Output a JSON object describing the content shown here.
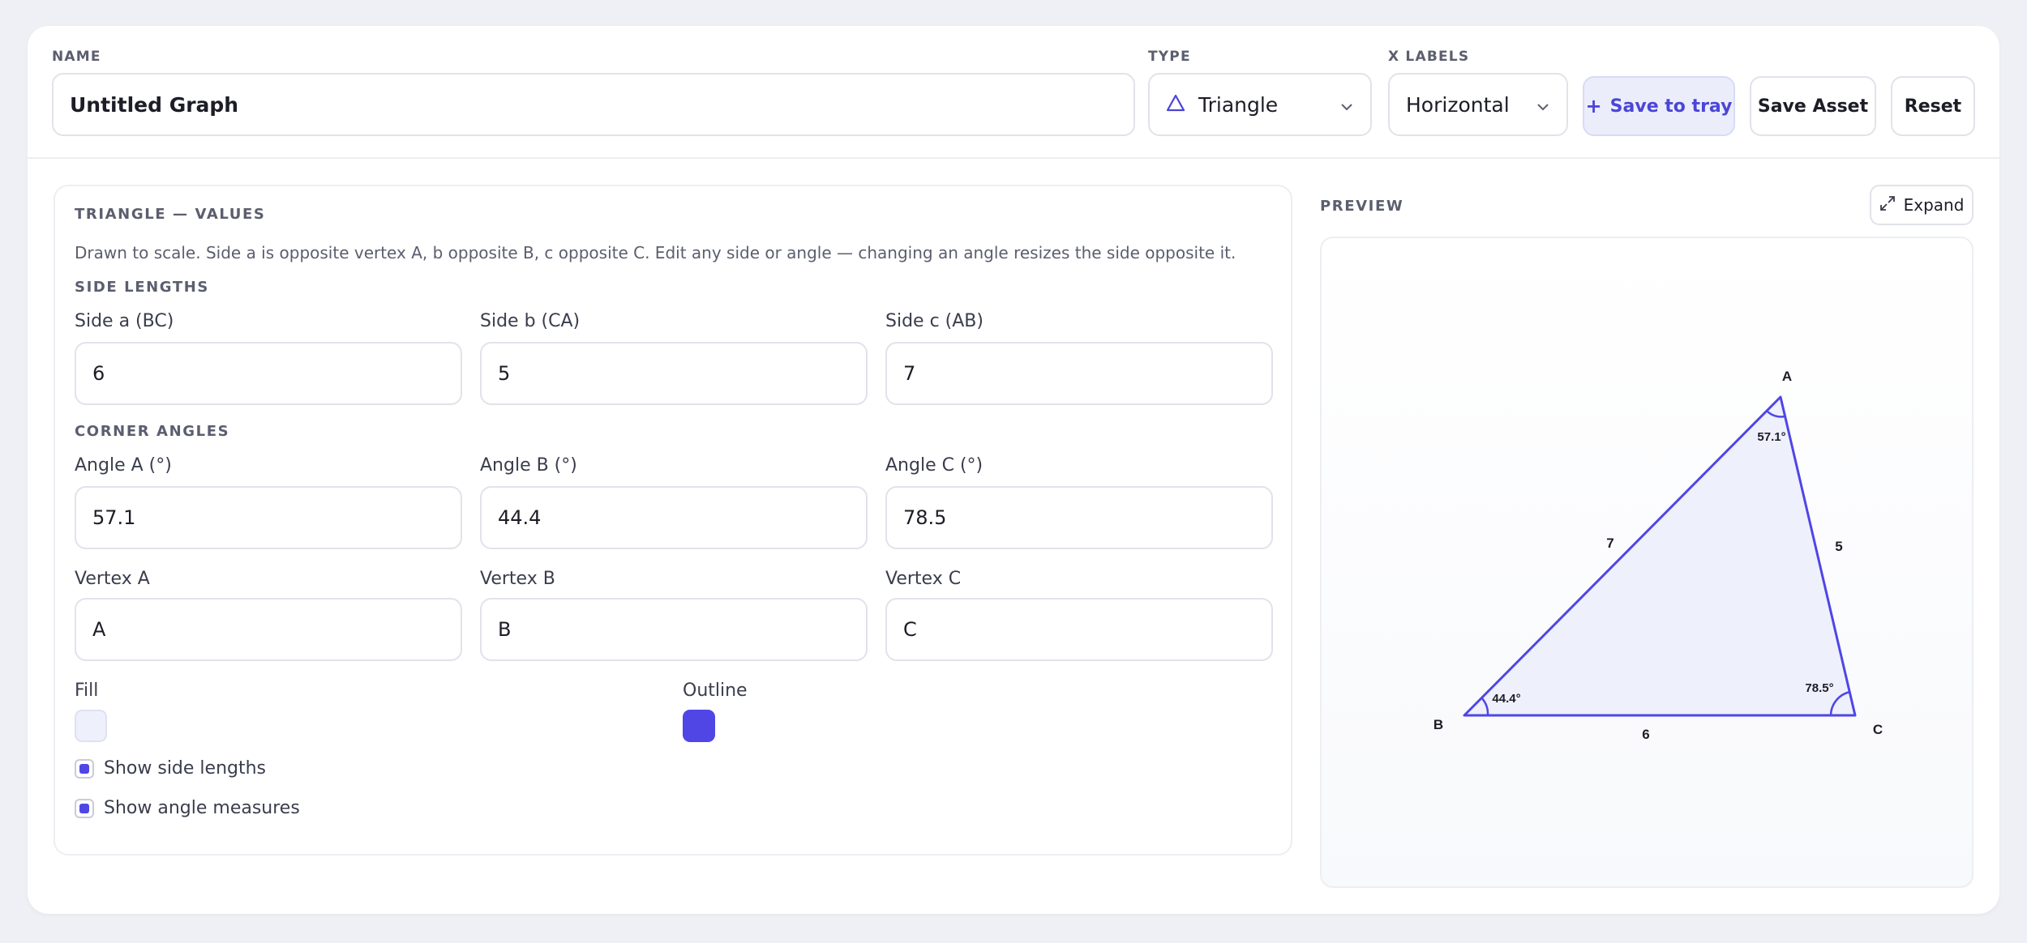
{
  "header": {
    "name_label": "NAME",
    "name_value": "Untitled Graph",
    "type_label": "TYPE",
    "type_value": "Triangle",
    "xlabels_label": "X LABELS",
    "xlabels_value": "Horizontal",
    "save_tray_label": "Save to tray",
    "save_asset_label": "Save Asset",
    "reset_label": "Reset"
  },
  "values_panel": {
    "title": "TRIANGLE — VALUES",
    "description": "Drawn to scale. Side a is opposite vertex A, b opposite B, c opposite C. Edit any side or angle — changing an angle resizes the side opposite it.",
    "side_heading": "SIDE LENGTHS",
    "sides": [
      {
        "label": "Side a (BC)",
        "value": "6"
      },
      {
        "label": "Side b (CA)",
        "value": "5"
      },
      {
        "label": "Side c (AB)",
        "value": "7"
      }
    ],
    "angle_heading": "CORNER ANGLES",
    "angles": [
      {
        "label": "Angle A (°)",
        "value": "57.1"
      },
      {
        "label": "Angle B (°)",
        "value": "44.4"
      },
      {
        "label": "Angle C (°)",
        "value": "78.5"
      }
    ],
    "vertices": [
      {
        "label": "Vertex A",
        "value": "A"
      },
      {
        "label": "Vertex B",
        "value": "B"
      },
      {
        "label": "Vertex C",
        "value": "C"
      }
    ],
    "fill_label": "Fill",
    "fill_color": "#eef0fb",
    "outline_label": "Outline",
    "outline_color": "#4f46e5",
    "show_sides_label": "Show side lengths",
    "show_sides_checked": true,
    "show_angles_label": "Show angle measures",
    "show_angles_checked": true
  },
  "preview": {
    "title": "PREVIEW",
    "expand_label": "Expand",
    "vertex_labels": {
      "A": "A",
      "B": "B",
      "C": "C"
    },
    "side_labels": {
      "a": "6",
      "b": "5",
      "c": "7"
    },
    "angle_labels": {
      "A": "57.1°",
      "B": "44.4°",
      "C": "78.5°"
    }
  }
}
